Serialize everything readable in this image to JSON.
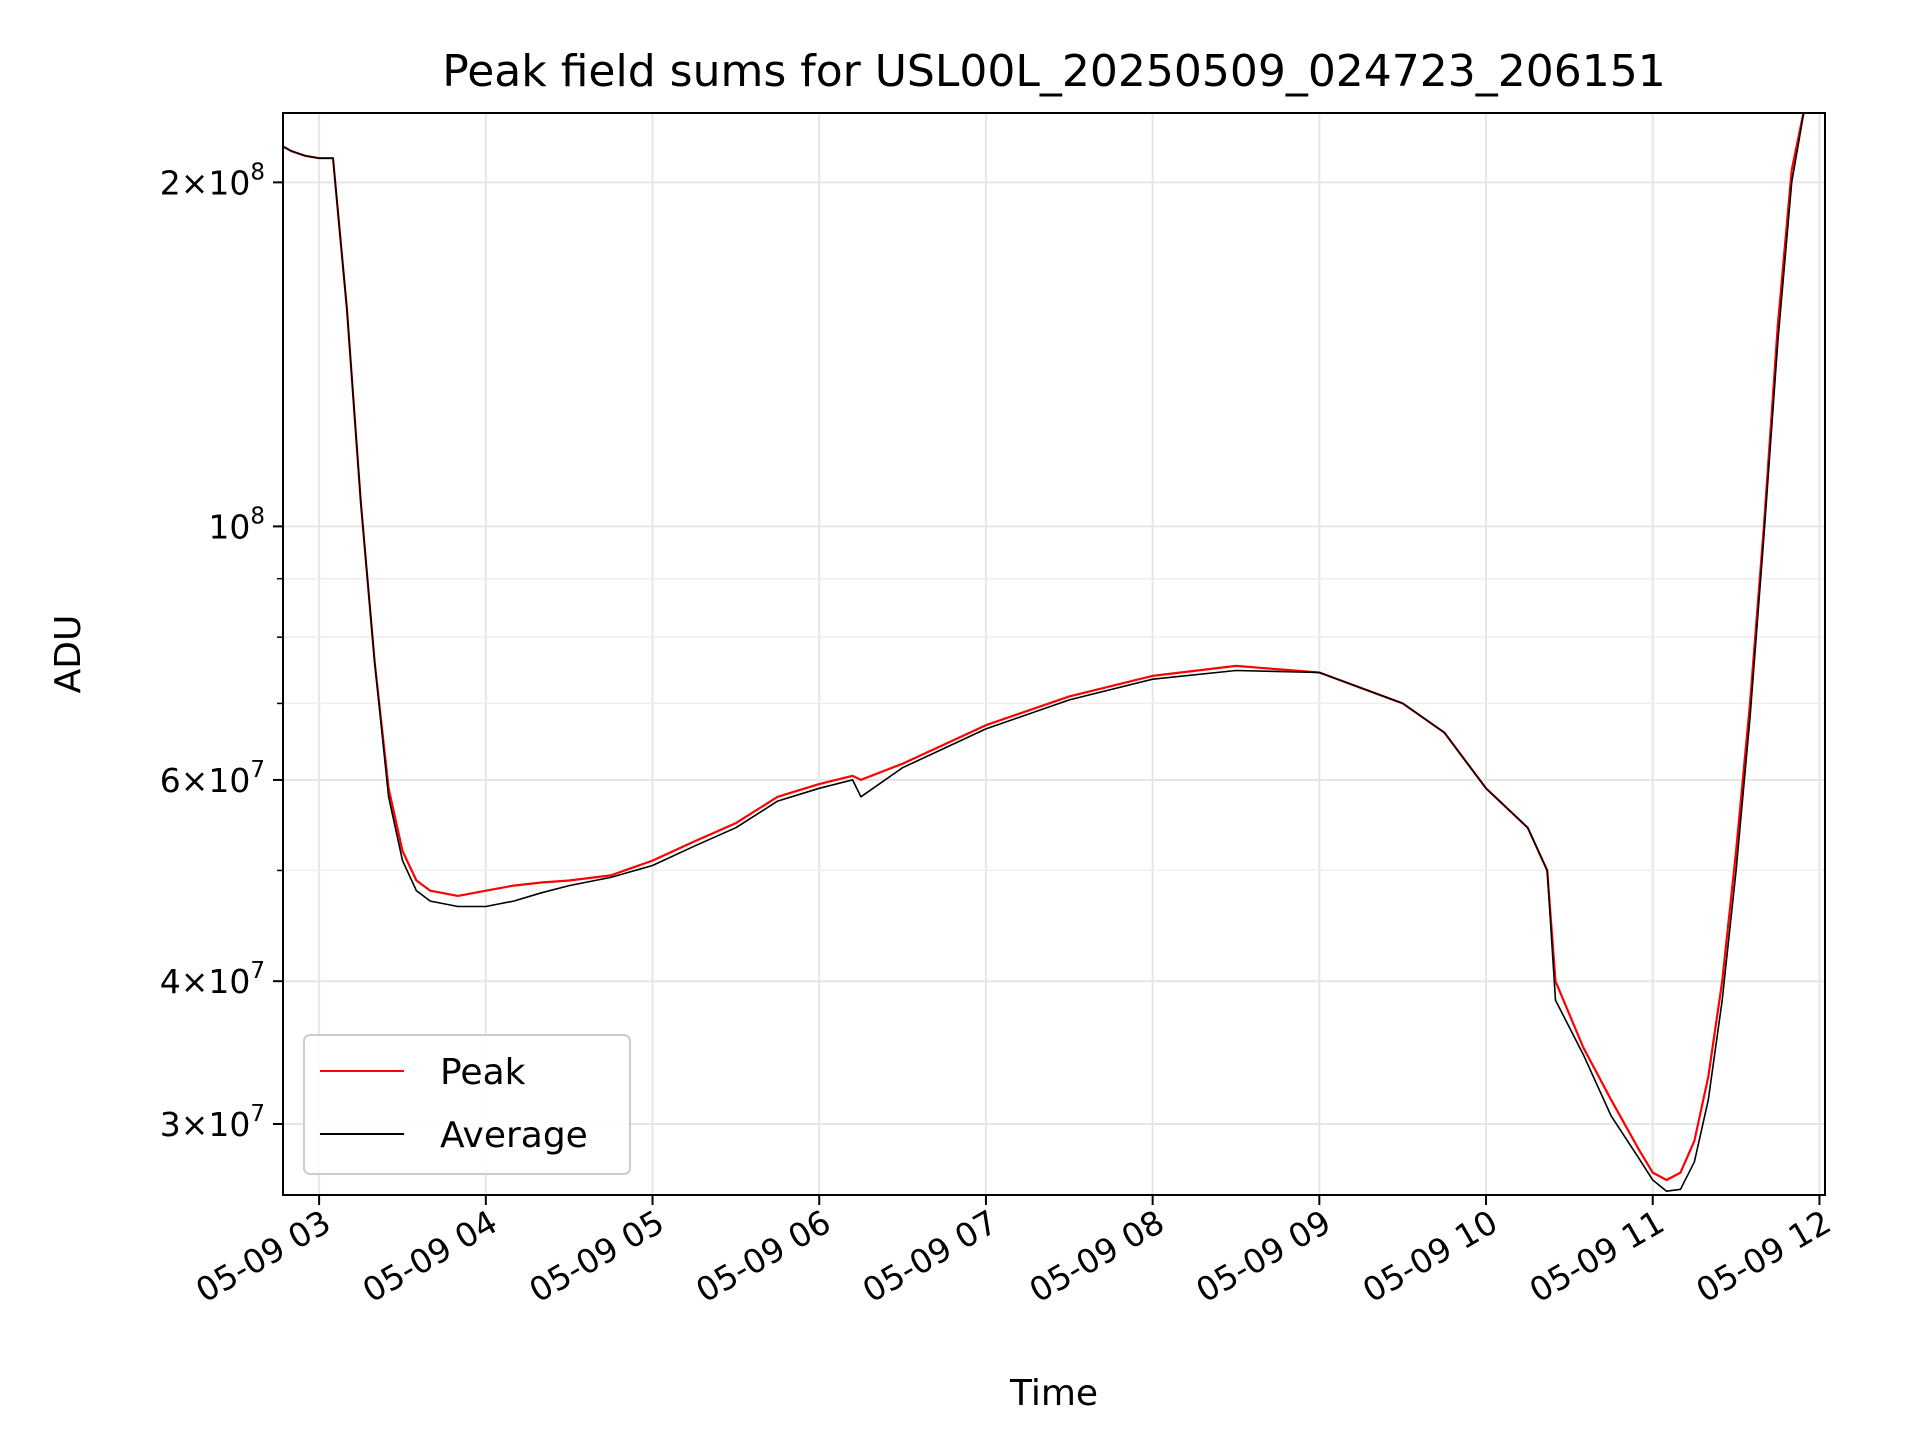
{
  "chart_data": {
    "type": "line",
    "title": "Peak field sums for USL00L_20250509_024723_206151",
    "xlabel": "Time",
    "ylabel": "ADU",
    "yscale": "log",
    "grid": true,
    "legend_position": "lower-left",
    "x_unit": "hours",
    "xlim": [
      "2025-05-09 02:47",
      "2025-05-09 12:02"
    ],
    "ylim": [
      26000000,
      230000000
    ],
    "x_ticks": [
      "05-09 03",
      "05-09 04",
      "05-09 05",
      "05-09 06",
      "05-09 07",
      "05-09 08",
      "05-09 09",
      "05-09 10",
      "05-09 11",
      "05-09 12"
    ],
    "y_tick_labels": [
      {
        "value": 30000000,
        "mant": "3",
        "exp": "7"
      },
      {
        "value": 40000000,
        "mant": "4",
        "exp": "7"
      },
      {
        "value": 60000000,
        "mant": "6",
        "exp": "7"
      },
      {
        "value": 100000000,
        "mant": "",
        "exp": "8"
      },
      {
        "value": 200000000,
        "mant": "2",
        "exp": "8"
      }
    ],
    "y_minor_ticks": [
      50000000,
      70000000,
      80000000,
      90000000
    ],
    "x": [
      "2025-05-09 02:47",
      "2025-05-09 02:50",
      "2025-05-09 02:55",
      "2025-05-09 03:00",
      "2025-05-09 03:05",
      "2025-05-09 03:10",
      "2025-05-09 03:15",
      "2025-05-09 03:20",
      "2025-05-09 03:25",
      "2025-05-09 03:30",
      "2025-05-09 03:35",
      "2025-05-09 03:40",
      "2025-05-09 03:50",
      "2025-05-09 04:00",
      "2025-05-09 04:10",
      "2025-05-09 04:20",
      "2025-05-09 04:30",
      "2025-05-09 04:45",
      "2025-05-09 05:00",
      "2025-05-09 05:15",
      "2025-05-09 05:30",
      "2025-05-09 05:45",
      "2025-05-09 06:00",
      "2025-05-09 06:12",
      "2025-05-09 06:15",
      "2025-05-09 06:30",
      "2025-05-09 07:00",
      "2025-05-09 07:30",
      "2025-05-09 08:00",
      "2025-05-09 08:30",
      "2025-05-09 09:00",
      "2025-05-09 09:30",
      "2025-05-09 09:45",
      "2025-05-09 10:00",
      "2025-05-09 10:15",
      "2025-05-09 10:22",
      "2025-05-09 10:25",
      "2025-05-09 10:35",
      "2025-05-09 10:45",
      "2025-05-09 10:55",
      "2025-05-09 11:00",
      "2025-05-09 11:05",
      "2025-05-09 11:10",
      "2025-05-09 11:15",
      "2025-05-09 11:20",
      "2025-05-09 11:25",
      "2025-05-09 11:30",
      "2025-05-09 11:35",
      "2025-05-09 11:40",
      "2025-05-09 11:45",
      "2025-05-09 11:50",
      "2025-05-09 11:55"
    ],
    "series": [
      {
        "name": "Peak",
        "color": "#ff0000",
        "values": [
          215000000,
          213000000,
          211000000,
          210000000,
          210000000,
          155000000,
          105000000,
          76000000,
          59000000,
          52000000,
          49000000,
          48000000,
          47500000,
          48000000,
          48500000,
          48800000,
          49000000,
          49500000,
          51000000,
          53000000,
          55000000,
          58000000,
          59500000,
          60500000,
          60000000,
          62000000,
          67000000,
          71000000,
          74000000,
          75500000,
          74500000,
          70000000,
          66000000,
          59000000,
          54500000,
          50000000,
          40000000,
          35000000,
          31500000,
          28500000,
          27200000,
          26800000,
          27200000,
          29000000,
          33000000,
          40000000,
          52000000,
          70000000,
          100000000,
          150000000,
          205000000,
          235000000
        ]
      },
      {
        "name": "Average",
        "color": "#000000",
        "values": [
          215000000,
          213000000,
          211000000,
          210000000,
          210000000,
          155000000,
          105000000,
          76000000,
          58000000,
          51000000,
          48000000,
          47000000,
          46500000,
          46500000,
          47000000,
          47800000,
          48500000,
          49300000,
          50500000,
          52500000,
          54500000,
          57500000,
          59000000,
          60000000,
          58000000,
          61500000,
          66500000,
          70500000,
          73500000,
          74800000,
          74500000,
          70000000,
          66000000,
          59000000,
          54500000,
          50000000,
          38500000,
          34500000,
          30500000,
          28000000,
          26800000,
          26200000,
          26300000,
          27800000,
          31500000,
          38500000,
          50000000,
          68000000,
          98000000,
          145000000,
          200000000,
          235000000
        ]
      }
    ]
  }
}
